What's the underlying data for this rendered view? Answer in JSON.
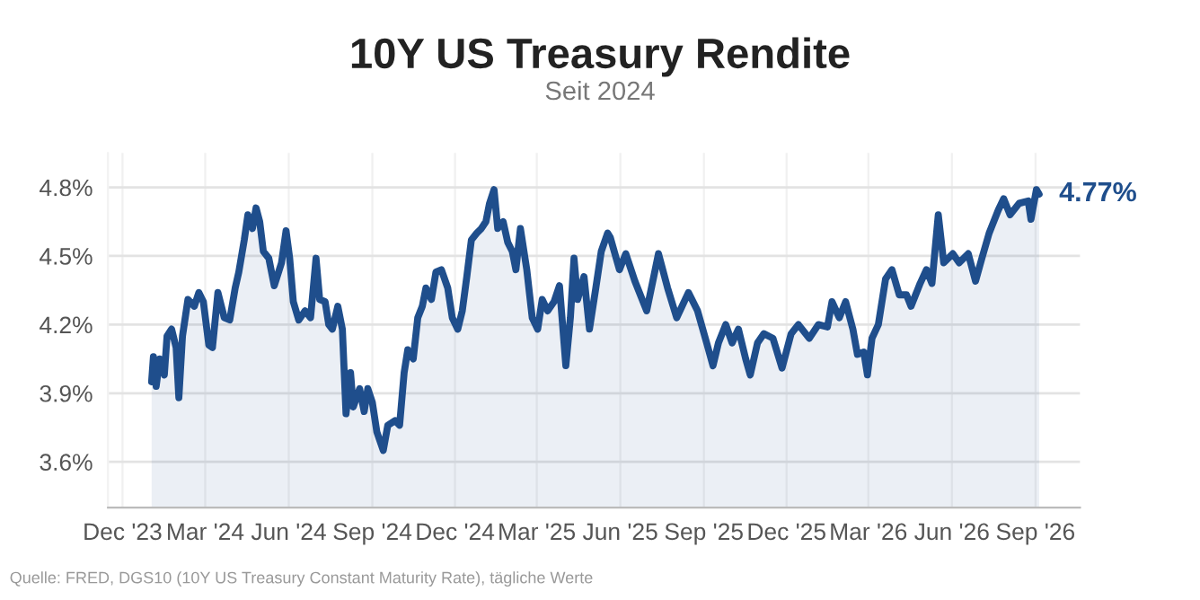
{
  "chart_data": {
    "type": "area",
    "title": "10Y US Treasury Rendite",
    "subtitle": "Seit 2024",
    "x": [
      "2024-01-02",
      "2024-01-04",
      "2024-01-07",
      "2024-01-11",
      "2024-01-16",
      "2024-01-19",
      "2024-01-24",
      "2024-01-29",
      "2024-02-01",
      "2024-02-05",
      "2024-02-11",
      "2024-02-18",
      "2024-02-23",
      "2024-02-28",
      "2024-03-05",
      "2024-03-09",
      "2024-03-15",
      "2024-03-22",
      "2024-03-28",
      "2024-04-03",
      "2024-04-07",
      "2024-04-13",
      "2024-04-17",
      "2024-04-22",
      "2024-04-26",
      "2024-04-30",
      "2024-05-04",
      "2024-05-10",
      "2024-05-16",
      "2024-05-24",
      "2024-05-29",
      "2024-06-02",
      "2024-06-06",
      "2024-06-12",
      "2024-06-19",
      "2024-06-25",
      "2024-07-01",
      "2024-07-05",
      "2024-07-11",
      "2024-07-15",
      "2024-07-19",
      "2024-07-25",
      "2024-07-30",
      "2024-08-03",
      "2024-08-08",
      "2024-08-11",
      "2024-08-18",
      "2024-08-23",
      "2024-08-27",
      "2024-09-01",
      "2024-09-06",
      "2024-09-13",
      "2024-09-18",
      "2024-09-26",
      "2024-10-01",
      "2024-10-06",
      "2024-10-10",
      "2024-10-16",
      "2024-10-21",
      "2024-10-26",
      "2024-10-30",
      "2024-11-05",
      "2024-11-10",
      "2024-11-16",
      "2024-11-23",
      "2024-11-28",
      "2024-12-04",
      "2024-12-09",
      "2024-12-14",
      "2024-12-19",
      "2024-12-25",
      "2024-12-30",
      "2025-01-04",
      "2025-01-08",
      "2025-01-13",
      "2025-01-17",
      "2025-01-23",
      "2025-01-28",
      "2025-02-02",
      "2025-02-06",
      "2025-02-11",
      "2025-02-18",
      "2025-02-24",
      "2025-03-02",
      "2025-03-07",
      "2025-03-13",
      "2025-03-20",
      "2025-03-26",
      "2025-04-02",
      "2025-04-07",
      "2025-04-11",
      "2025-04-15",
      "2025-04-22",
      "2025-04-28",
      "2025-05-05",
      "2025-05-11",
      "2025-05-18",
      "2025-05-21",
      "2025-05-31",
      "2025-06-07",
      "2025-06-17",
      "2025-06-30",
      "2025-07-13",
      "2025-07-23",
      "2025-08-02",
      "2025-08-15",
      "2025-08-25",
      "2025-09-04",
      "2025-09-11",
      "2025-09-17",
      "2025-09-25",
      "2025-10-02",
      "2025-10-09",
      "2025-10-17",
      "2025-10-22",
      "2025-10-30",
      "2025-11-06",
      "2025-11-16",
      "2025-11-26",
      "2025-12-06",
      "2025-12-14",
      "2025-12-26",
      "2026-01-05",
      "2026-01-15",
      "2026-01-20",
      "2026-01-28",
      "2026-02-04",
      "2026-02-12",
      "2026-02-17",
      "2026-02-24",
      "2026-02-28",
      "2026-03-05",
      "2026-03-12",
      "2026-03-20",
      "2026-03-27",
      "2026-04-04",
      "2026-04-12",
      "2026-04-17",
      "2026-04-27",
      "2026-05-04",
      "2026-05-10",
      "2026-05-17",
      "2026-05-23",
      "2026-06-02",
      "2026-06-09",
      "2026-06-19",
      "2026-06-27",
      "2026-07-04",
      "2026-07-12",
      "2026-07-22",
      "2026-07-28",
      "2026-08-04",
      "2026-08-14",
      "2026-08-24",
      "2026-08-27",
      "2026-09-02",
      "2026-09-05"
    ],
    "series": [
      {
        "color": "#1f4e8c",
        "values": [
          3.95,
          4.06,
          3.93,
          4.05,
          3.98,
          4.15,
          4.18,
          4.1,
          3.88,
          4.15,
          4.31,
          4.28,
          4.34,
          4.3,
          4.11,
          4.1,
          4.34,
          4.23,
          4.22,
          4.36,
          4.43,
          4.57,
          4.68,
          4.62,
          4.71,
          4.65,
          4.52,
          4.49,
          4.37,
          4.47,
          4.61,
          4.49,
          4.3,
          4.22,
          4.26,
          4.23,
          4.49,
          4.31,
          4.3,
          4.2,
          4.18,
          4.28,
          4.18,
          3.81,
          3.99,
          3.84,
          3.92,
          3.82,
          3.92,
          3.86,
          3.73,
          3.65,
          3.76,
          3.78,
          3.76,
          3.99,
          4.09,
          4.05,
          4.23,
          4.28,
          4.36,
          4.31,
          4.43,
          4.44,
          4.36,
          4.23,
          4.18,
          4.26,
          4.41,
          4.57,
          4.6,
          4.62,
          4.65,
          4.73,
          4.79,
          4.62,
          4.65,
          4.56,
          4.52,
          4.44,
          4.62,
          4.44,
          4.23,
          4.18,
          4.31,
          4.26,
          4.3,
          4.37,
          4.02,
          4.23,
          4.49,
          4.31,
          4.41,
          4.18,
          4.36,
          4.52,
          4.6,
          4.58,
          4.44,
          4.51,
          4.39,
          4.26,
          4.51,
          4.36,
          4.23,
          4.34,
          4.26,
          4.12,
          4.02,
          4.12,
          4.2,
          4.12,
          4.18,
          4.05,
          3.98,
          4.12,
          4.16,
          4.14,
          4.01,
          4.16,
          4.2,
          4.14,
          4.2,
          4.19,
          4.3,
          4.23,
          4.3,
          4.18,
          4.07,
          4.08,
          3.98,
          4.14,
          4.2,
          4.4,
          4.44,
          4.33,
          4.33,
          4.28,
          4.38,
          4.44,
          4.38,
          4.68,
          4.47,
          4.51,
          4.47,
          4.51,
          4.39,
          4.49,
          4.6,
          4.7,
          4.75,
          4.68,
          4.73,
          4.74,
          4.66,
          4.79,
          4.77
        ]
      }
    ],
    "xlim": [
      "2023-11-15",
      "2026-10-20"
    ],
    "xticks": [
      {
        "value": "2023-12-01",
        "label": "Dec '23"
      },
      {
        "value": "2024-03-01",
        "label": "Mar '24"
      },
      {
        "value": "2024-06-01",
        "label": "Jun '24"
      },
      {
        "value": "2024-09-01",
        "label": "Sep '24"
      },
      {
        "value": "2024-12-01",
        "label": "Dec '24"
      },
      {
        "value": "2025-03-01",
        "label": "Mar '25"
      },
      {
        "value": "2025-06-01",
        "label": "Jun '25"
      },
      {
        "value": "2025-09-01",
        "label": "Sep '25"
      },
      {
        "value": "2025-12-01",
        "label": "Dec '25"
      },
      {
        "value": "2026-03-01",
        "label": "Mar '26"
      },
      {
        "value": "2026-06-01",
        "label": "Jun '26"
      },
      {
        "value": "2026-09-01",
        "label": "Sep '26"
      }
    ],
    "ylim": [
      3.4,
      4.95
    ],
    "yticks": [
      {
        "value": 3.6,
        "label": "3.6%"
      },
      {
        "value": 3.9,
        "label": "3.9%"
      },
      {
        "value": 4.2,
        "label": "4.2%"
      },
      {
        "value": 4.5,
        "label": "4.5%"
      },
      {
        "value": 4.8,
        "label": "4.8%"
      }
    ],
    "grid": true,
    "annotations": [
      {
        "text": "4.77%",
        "x": "2026-09-05",
        "y": 4.77
      },
      "Quelle: FRED, DGS10 (10Y US Treasury Constant Maturity Rate), tägliche Werte"
    ]
  }
}
